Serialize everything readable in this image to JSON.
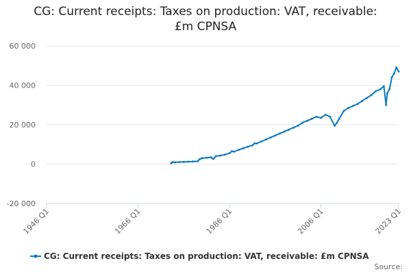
{
  "chart_data": {
    "type": "line",
    "title": "CG: Current receipts: Taxes on production: VAT, receivable: £m CPNSA",
    "source": "Source:",
    "xlim": [
      1946,
      2023
    ],
    "xticks": [
      {
        "value": 1946,
        "label": "1946 Q1"
      },
      {
        "value": 1966,
        "label": "1966 Q1"
      },
      {
        "value": 1986,
        "label": "1986 Q1"
      },
      {
        "value": 2006,
        "label": "2006 Q1"
      },
      {
        "value": 2023,
        "label": "2023 Q1"
      }
    ],
    "ylim": [
      -20000,
      60000
    ],
    "yticks": [
      {
        "value": -20000,
        "label": "-20 000"
      },
      0,
      {
        "value": 20000,
        "label": "20 000"
      },
      {
        "value": 40000,
        "label": "40 000"
      },
      {
        "value": 60000,
        "label": "60 000"
      }
    ],
    "grid": true,
    "series": [
      {
        "name": "CG: Current receipts: Taxes on production: VAT, receivable: £m CPNSA",
        "color": "#0a7abf",
        "x": [
          1973.25,
          1973.5,
          1974,
          1975,
          1976,
          1977,
          1978,
          1979,
          1979.5,
          1980,
          1981,
          1982,
          1982.5,
          1983,
          1984,
          1985,
          1986,
          1986.5,
          1987,
          1988,
          1989,
          1990,
          1991,
          1991.5,
          1992,
          1993,
          1994,
          1995,
          1996,
          1997,
          1998,
          1999,
          2000,
          2001,
          2002,
          2003,
          2004,
          2005,
          2006,
          2007,
          2008,
          2009,
          2009.5,
          2010,
          2011,
          2012,
          2013,
          2014,
          2015,
          2016,
          2017,
          2018,
          2019,
          2019.75,
          2020.25,
          2020.5,
          2021,
          2021.5,
          2022,
          2022.5,
          2023
        ],
        "values": [
          300,
          1000,
          900,
          1000,
          1100,
          1200,
          1300,
          1400,
          2500,
          3000,
          3200,
          3400,
          2600,
          4000,
          4300,
          4800,
          5500,
          6500,
          6300,
          7200,
          8000,
          8800,
          9500,
          10500,
          10500,
          11500,
          12500,
          13500,
          14500,
          15500,
          16500,
          17500,
          18500,
          19500,
          21000,
          22000,
          23000,
          24000,
          23500,
          25000,
          24000,
          19500,
          21000,
          23000,
          27000,
          28500,
          29500,
          30500,
          32000,
          33500,
          35000,
          37000,
          38000,
          39500,
          30000,
          36000,
          38000,
          44000,
          46000,
          49000,
          47000
        ]
      }
    ]
  }
}
